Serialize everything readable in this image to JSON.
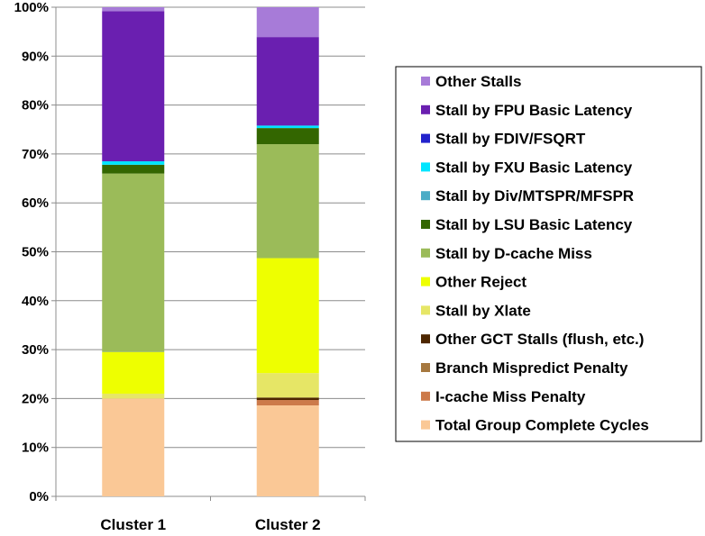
{
  "chart_data": {
    "type": "bar",
    "stacked": true,
    "percent": true,
    "categories": [
      "Cluster 1",
      "Cluster 2"
    ],
    "ylim": [
      0,
      100
    ],
    "yticks": [
      0,
      10,
      20,
      30,
      40,
      50,
      60,
      70,
      80,
      90,
      100
    ],
    "ytick_labels": [
      "0%",
      "10%",
      "20%",
      "30%",
      "40%",
      "50%",
      "60%",
      "70%",
      "80%",
      "90%",
      "100%"
    ],
    "grid": true,
    "legend_position": "right",
    "series": [
      {
        "name": "Total Group Complete Cycles",
        "color": "#FAC896",
        "values": [
          20.0,
          18.6
        ]
      },
      {
        "name": "I-cache Miss Penalty",
        "color": "#CC7A4A",
        "values": [
          0.0,
          1.1
        ]
      },
      {
        "name": "Branch Mispredict Penalty",
        "color": "#A6783F",
        "values": [
          0.0,
          0.0
        ]
      },
      {
        "name": "Other GCT Stalls (flush, etc.)",
        "color": "#4D2600",
        "values": [
          0.0,
          0.5
        ]
      },
      {
        "name": "Stall by Xlate",
        "color": "#E6E666",
        "values": [
          1.0,
          5.0
        ]
      },
      {
        "name": "Other Reject",
        "color": "#EEFF00",
        "values": [
          8.5,
          23.5
        ]
      },
      {
        "name": "Stall by D-cache Miss",
        "color": "#9BBB59",
        "values": [
          36.5,
          23.3
        ]
      },
      {
        "name": "Stall by LSU Basic Latency",
        "color": "#336600",
        "values": [
          1.8,
          3.3
        ]
      },
      {
        "name": "Stall by Div/MTSPR/MFSPR",
        "color": "#4BACC6",
        "values": [
          0.0,
          0.0
        ]
      },
      {
        "name": "Stall by FXU Basic Latency",
        "color": "#00E5FF",
        "values": [
          0.7,
          0.5
        ]
      },
      {
        "name": "Stall by FDIV/FSQRT",
        "color": "#2222CC",
        "values": [
          0.0,
          0.0
        ]
      },
      {
        "name": "Stall by FPU Basic Latency",
        "color": "#6A1FB0",
        "values": [
          30.7,
          18.1
        ]
      },
      {
        "name": "Other Stalls",
        "color": "#A77BD8",
        "values": [
          0.8,
          6.1
        ]
      }
    ]
  }
}
